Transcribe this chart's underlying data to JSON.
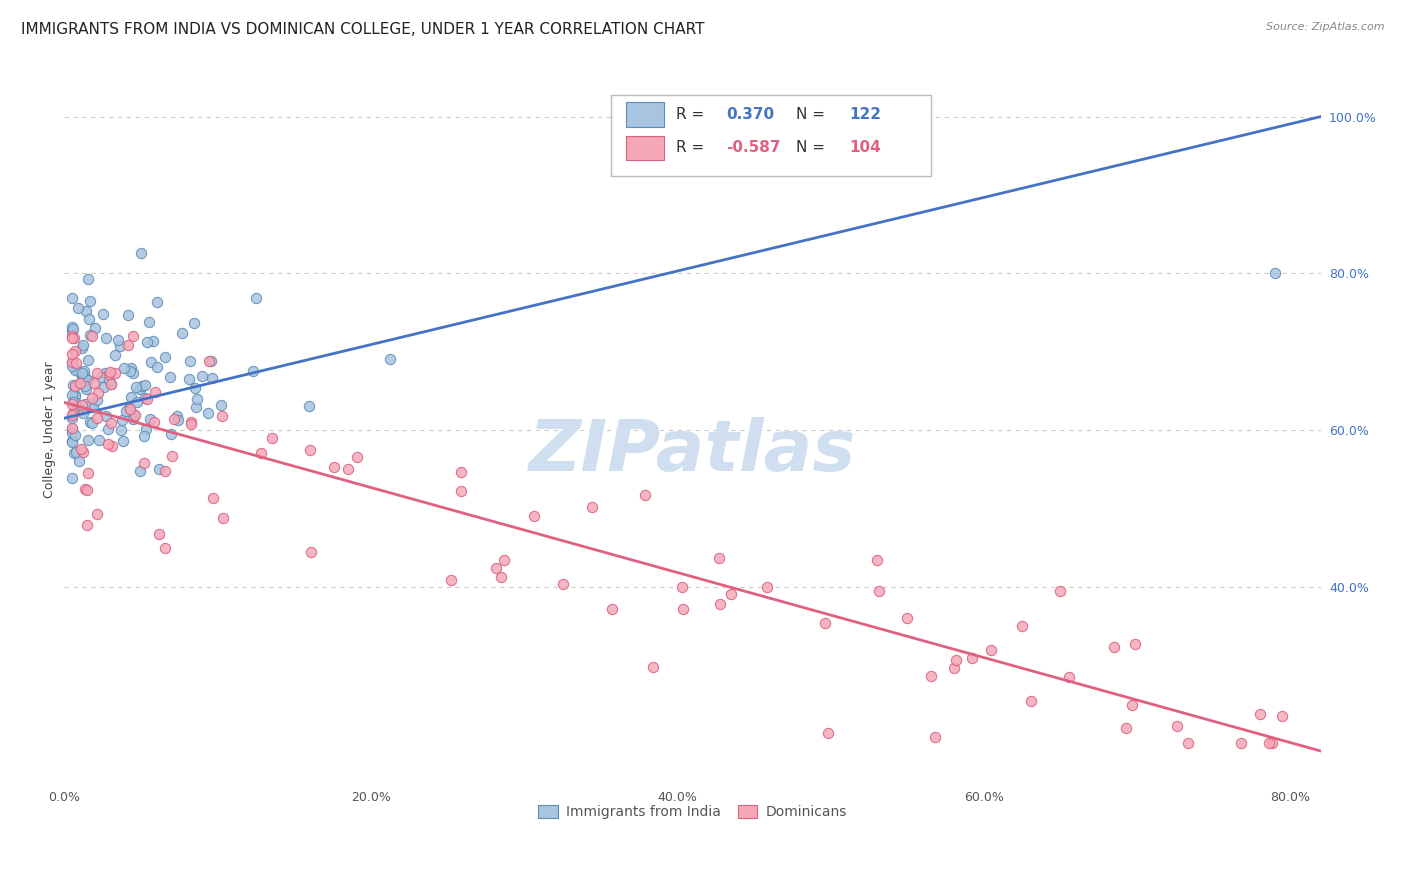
{
  "title": "IMMIGRANTS FROM INDIA VS DOMINICAN COLLEGE, UNDER 1 YEAR CORRELATION CHART",
  "source": "Source: ZipAtlas.com",
  "ylabel": "College, Under 1 year",
  "xlim": [
    0.0,
    0.82
  ],
  "ylim": [
    0.15,
    1.05
  ],
  "blue_color": "#A8C4E0",
  "pink_color": "#F4A8B8",
  "blue_edge_color": "#5B8DB8",
  "pink_edge_color": "#D96080",
  "blue_line_color": "#4472C4",
  "pink_line_color": "#E06080",
  "legend_R_blue": "0.370",
  "legend_N_blue": "122",
  "legend_R_pink": "-0.587",
  "legend_N_pink": "104",
  "legend_color_blue": "#4472C4",
  "legend_color_pink": "#E06080",
  "title_fontsize": 11,
  "axis_label_fontsize": 9,
  "tick_fontsize": 9,
  "marker_size": 55,
  "blue_trend_x": [
    0.0,
    0.82
  ],
  "blue_trend_y": [
    0.615,
    1.0
  ],
  "pink_trend_x": [
    0.0,
    0.82
  ],
  "pink_trend_y": [
    0.635,
    0.19
  ],
  "xtick_vals": [
    0.0,
    0.2,
    0.4,
    0.6,
    0.8
  ],
  "xtick_labels": [
    "0.0%",
    "20.0%",
    "40.0%",
    "60.0%",
    "80.0%"
  ],
  "ytick_vals": [
    0.4,
    0.6,
    0.8,
    1.0
  ],
  "ytick_labels": [
    "40.0%",
    "60.0%",
    "80.0%",
    "100.0%"
  ],
  "grid_color": "#CCCCCC",
  "watermark_text": "ZIPatlas",
  "watermark_color": "#D0DFF0",
  "bottom_legend_labels": [
    "Immigrants from India",
    "Dominicans"
  ]
}
